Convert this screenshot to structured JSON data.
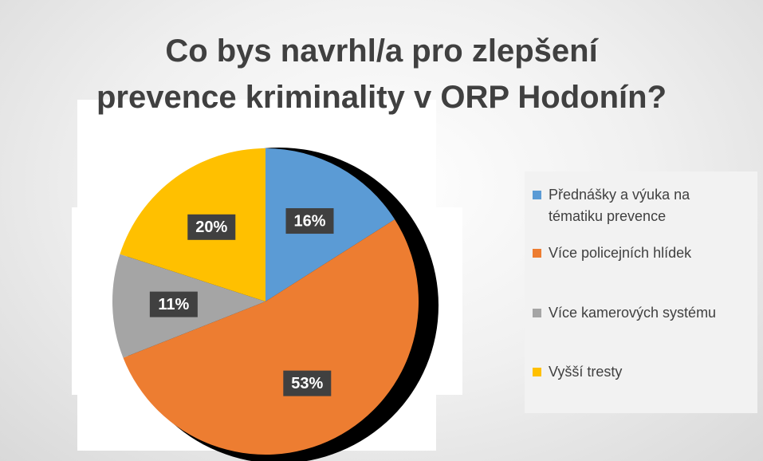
{
  "chart_data": {
    "type": "pie",
    "title": [
      "Co bys navrhl/a pro zlepšení",
      "prevence kriminality v ORP Hodonín?"
    ],
    "categories": [
      "Přednášky a výuka na tématiku prevence",
      "Více policejních hlídek",
      "Více kamerových systému",
      "Vyšší tresty"
    ],
    "values": [
      16,
      53,
      11,
      20
    ],
    "value_labels": [
      "16%",
      "53%",
      "11%",
      "20%"
    ],
    "colors": [
      "#5b9bd5",
      "#ed7d31",
      "#a5a5a5",
      "#ffc000"
    ],
    "legend": "right"
  }
}
